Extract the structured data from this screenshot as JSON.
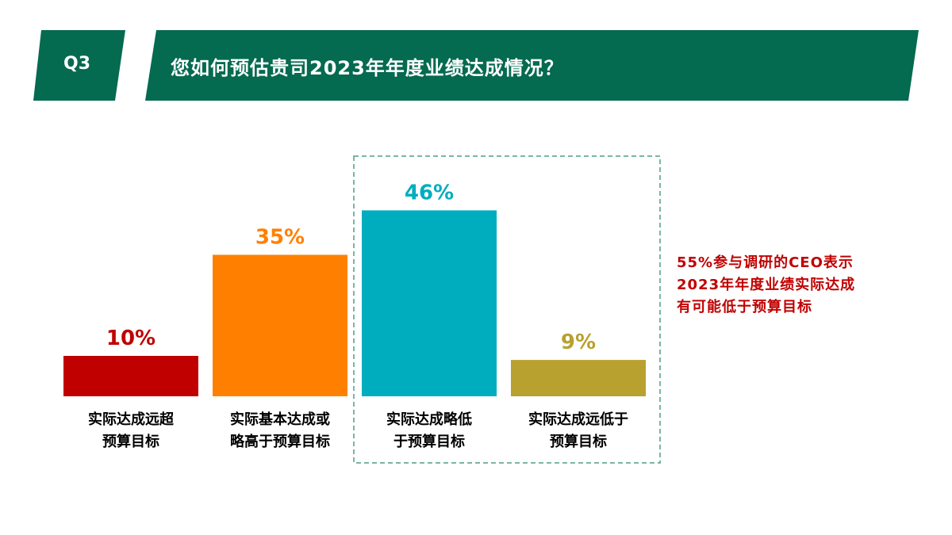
{
  "header": {
    "question_number": "Q3",
    "title": "您如何预估贵司2023年年度业绩达成情况？",
    "color": "#046A50"
  },
  "chart_data": {
    "type": "bar",
    "title": "",
    "categories": [
      "实际达成远超预算目标",
      "实际基本达成或略高于预算目标",
      "实际达成略低于预算目标",
      "实际达成远低于预算目标"
    ],
    "category_lines": [
      [
        "实际达成远超",
        "预算目标"
      ],
      [
        "实际基本达成或",
        "略高于预算目标"
      ],
      [
        "实际达成略低",
        "于预算目标"
      ],
      [
        "实际达成远低于",
        "预算目标"
      ]
    ],
    "values": [
      10,
      35,
      46,
      9
    ],
    "value_labels": [
      "10%",
      "35%",
      "46%",
      "9%"
    ],
    "colors": [
      "#C00000",
      "#FF8000",
      "#00ADBE",
      "#B8A12E"
    ],
    "unit": "%",
    "highlight": {
      "categories": [
        2,
        3
      ],
      "style": "dashed-box",
      "color": "#4E9E85"
    },
    "grid": false,
    "axes_visible": false
  },
  "annotation": {
    "text": "55%参与调研的CEO表示2023年年度业绩实际达成有可能低于预算目标",
    "color": "#C00000"
  }
}
